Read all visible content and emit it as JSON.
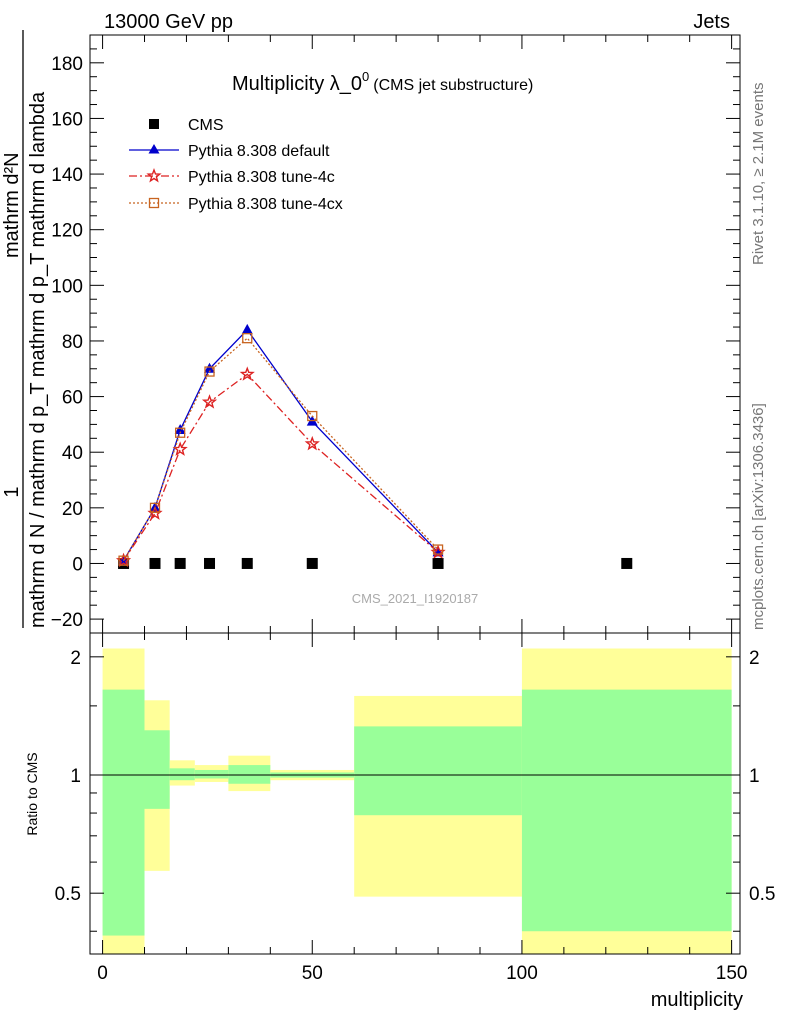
{
  "header": {
    "left": "13000 GeV pp",
    "right": "Jets"
  },
  "side_labels": {
    "rivet": "Rivet 3.1.10, ≥ 2.1M events",
    "mcplots": "mcplots.cern.ch [arXiv:1306.3436]"
  },
  "colors": {
    "cms": "#000000",
    "default": "#0000cc",
    "tune4c": "#dd2222",
    "tune4cx": "#c86420",
    "band_inner": "#99ff99",
    "band_outer": "#ffff99"
  },
  "chart_data": [
    {
      "type": "line",
      "title": "Multiplicity λ_0",
      "title_superscript": "0",
      "subtitle": "(CMS jet substructure)",
      "ylabel_numerator": "1",
      "ylabel_denominator": "mathrm d N / mathrm d p_T mathrm d p_T mathrm d lambda",
      "ylabel_frac_num": "mathrm d²N",
      "xlim": [
        -3,
        152
      ],
      "ylim": [
        -25,
        190
      ],
      "yticks": [
        -20,
        0,
        20,
        40,
        60,
        80,
        100,
        120,
        140,
        160,
        180
      ],
      "watermark": "CMS_2021_I1920187",
      "legend_position": "top-left",
      "series": [
        {
          "name": "CMS",
          "marker": "square",
          "x": [
            5,
            12.5,
            18.5,
            25.5,
            34.5,
            50,
            80,
            125
          ],
          "y": [
            0,
            0,
            0,
            0,
            0,
            0,
            0,
            0
          ]
        },
        {
          "name": "Pythia 8.308 default",
          "marker": "triangle",
          "x": [
            5,
            12.5,
            18.5,
            25.5,
            34.5,
            50,
            80
          ],
          "y": [
            1,
            20,
            48,
            70,
            84,
            51,
            4
          ]
        },
        {
          "name": "Pythia 8.308 tune-4c",
          "marker": "star",
          "x": [
            5,
            12.5,
            18.5,
            25.5,
            34.5,
            50,
            80
          ],
          "y": [
            1,
            18,
            41,
            58,
            68,
            43,
            4
          ]
        },
        {
          "name": "Pythia 8.308 tune-4cx",
          "marker": "open-square",
          "x": [
            5,
            12.5,
            18.5,
            25.5,
            34.5,
            50,
            80
          ],
          "y": [
            1,
            20,
            47,
            69,
            81,
            53,
            5
          ]
        }
      ]
    },
    {
      "type": "area",
      "ylabel": "Ratio to CMS",
      "xlabel": "multiplicity",
      "xlim": [
        -3,
        152
      ],
      "ylim": [
        0.35,
        2.3
      ],
      "scale": "log",
      "yticks": [
        0.5,
        1,
        2
      ],
      "xticks": [
        0,
        50,
        100,
        150
      ],
      "reference_line": 1,
      "bands": [
        {
          "x0": 0,
          "x1": 10,
          "inner": [
            0.39,
            1.65
          ],
          "outer": [
            0.35,
            2.1
          ]
        },
        {
          "x0": 10,
          "x1": 16,
          "inner": [
            0.82,
            1.3
          ],
          "outer": [
            0.57,
            1.55
          ]
        },
        {
          "x0": 16,
          "x1": 22,
          "inner": [
            0.97,
            1.04
          ],
          "outer": [
            0.94,
            1.09
          ]
        },
        {
          "x0": 22,
          "x1": 30,
          "inner": [
            0.98,
            1.03
          ],
          "outer": [
            0.96,
            1.06
          ]
        },
        {
          "x0": 30,
          "x1": 40,
          "inner": [
            0.95,
            1.06
          ],
          "outer": [
            0.91,
            1.12
          ]
        },
        {
          "x0": 40,
          "x1": 60,
          "inner": [
            0.985,
            1.015
          ],
          "outer": [
            0.97,
            1.03
          ]
        },
        {
          "x0": 60,
          "x1": 100,
          "inner": [
            0.79,
            1.33
          ],
          "outer": [
            0.49,
            1.59
          ]
        },
        {
          "x0": 100,
          "x1": 150,
          "inner": [
            0.4,
            1.65
          ],
          "outer": [
            0.35,
            2.1
          ]
        }
      ]
    }
  ]
}
